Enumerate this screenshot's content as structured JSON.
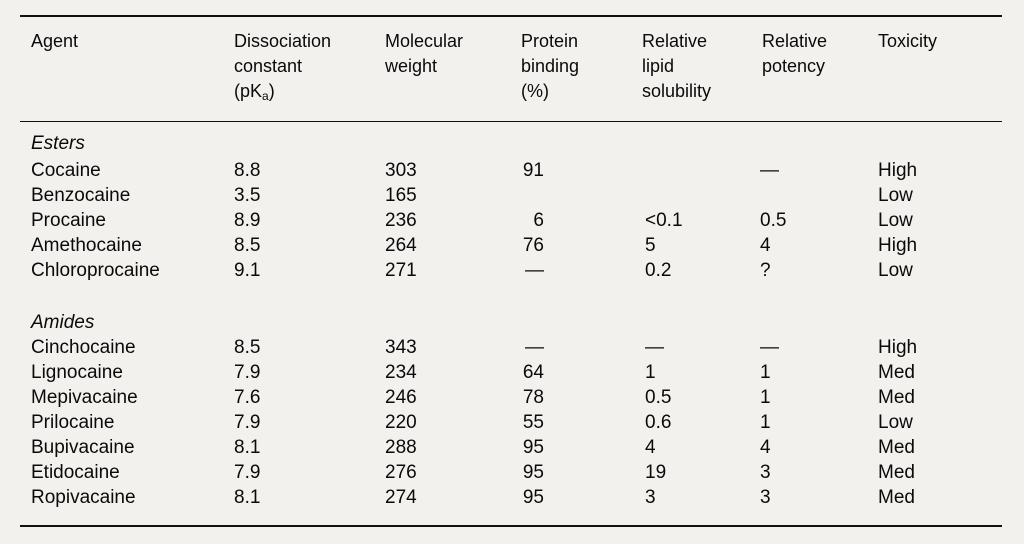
{
  "headers": {
    "agent": [
      "Agent"
    ],
    "pka": [
      "Dissociation",
      "constant",
      "(pK",
      "a",
      ")"
    ],
    "mw": [
      "Molecular",
      "weight"
    ],
    "pb": [
      "Protein",
      "binding",
      "(%)"
    ],
    "ls": [
      "Relative",
      "lipid",
      "solubility"
    ],
    "rp": [
      "Relative",
      "potency"
    ],
    "tx": [
      "Toxicity"
    ]
  },
  "sections": {
    "esters": "Esters",
    "amides": "Amides"
  },
  "esters": [
    {
      "agent": "Cocaine",
      "pka": "8.8",
      "mw": "303",
      "pb": "91",
      "ls": "",
      "rp": "—",
      "tx": "High"
    },
    {
      "agent": "Benzocaine",
      "pka": "3.5",
      "mw": "165",
      "pb": "",
      "ls": "",
      "rp": "",
      "tx": "Low"
    },
    {
      "agent": "Procaine",
      "pka": "8.9",
      "mw": "236",
      "pb": "6",
      "ls": "<0.1",
      "rp": "0.5",
      "tx": "Low"
    },
    {
      "agent": "Amethocaine",
      "pka": "8.5",
      "mw": "264",
      "pb": "76",
      "ls": "5",
      "rp": "4",
      "tx": "High"
    },
    {
      "agent": "Chloroprocaine",
      "pka": "9.1",
      "mw": "271",
      "pb": "—",
      "ls": "0.2",
      "rp": "?",
      "tx": "Low"
    }
  ],
  "amides": [
    {
      "agent": "Cinchocaine",
      "pka": "8.5",
      "mw": "343",
      "pb": "—",
      "ls": "—",
      "rp": "—",
      "tx": "High"
    },
    {
      "agent": "Lignocaine",
      "pka": "7.9",
      "mw": "234",
      "pb": "64",
      "ls": "1",
      "rp": "1",
      "tx": "Med"
    },
    {
      "agent": "Mepivacaine",
      "pka": "7.6",
      "mw": "246",
      "pb": "78",
      "ls": "0.5",
      "rp": "1",
      "tx": "Med"
    },
    {
      "agent": "Prilocaine",
      "pka": "7.9",
      "mw": "220",
      "pb": "55",
      "ls": "0.6",
      "rp": "1",
      "tx": "Low"
    },
    {
      "agent": "Bupivacaine",
      "pka": "8.1",
      "mw": "288",
      "pb": "95",
      "ls": "4",
      "rp": "4",
      "tx": "Med"
    },
    {
      "agent": "Etidocaine",
      "pka": "7.9",
      "mw": "276",
      "pb": "95",
      "ls": "19",
      "rp": "3",
      "tx": "Med"
    },
    {
      "agent": "Ropivacaine",
      "pka": "8.1",
      "mw": "274",
      "pb": "95",
      "ls": "3",
      "rp": "3",
      "tx": "Med"
    }
  ]
}
